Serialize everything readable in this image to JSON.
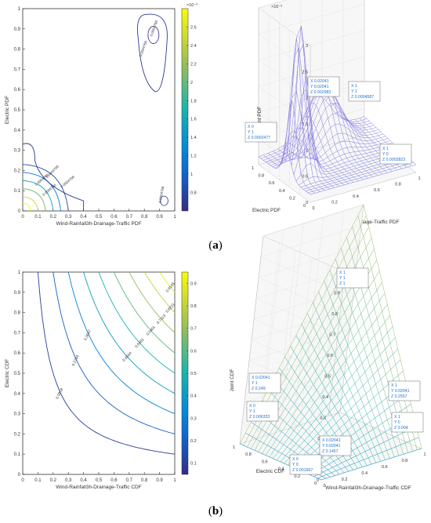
{
  "panel_labels": {
    "a": "a",
    "b": "b"
  },
  "chart_data": [
    {
      "id": "a-contour",
      "type": "contour",
      "xlabel": "Wind-Rainfall3h-Drainage-Traffic PDF",
      "ylabel": "Electric PDF",
      "xlim": [
        0,
        1
      ],
      "ylim": [
        0,
        1
      ],
      "xticks": [
        "0",
        "0.1",
        "0.2",
        "0.3",
        "0.4",
        "0.5",
        "0.6",
        "0.7",
        "0.8",
        "0.9",
        "1"
      ],
      "yticks": [
        "0",
        "0.1",
        "0.2",
        "0.3",
        "0.4",
        "0.5",
        "0.6",
        "0.7",
        "0.8",
        "0.9",
        "1"
      ],
      "contour_labels": [
        "0.0004766",
        "0.0004766",
        "0.0004766",
        "0.0004766",
        "0.0004766",
        "0.0004766",
        "0.0004766"
      ],
      "colorbar": {
        "exponent": "×10⁻³",
        "ticks": [
          "0.8",
          "1",
          "1.2",
          "1.4",
          "1.6",
          "1.8",
          "2",
          "2.2",
          "2.4",
          "2.6"
        ],
        "range": [
          0.6,
          2.8
        ]
      }
    },
    {
      "id": "a-surface",
      "type": "surface",
      "xlabel": "Wind-Rainfall3h-Drainage-Traffic PDF",
      "ylabel": "Electric PDF",
      "zlabel": "Joint PDF",
      "exponent": "×10⁻³",
      "zticks": [
        "0",
        "0.5",
        "1",
        "1.5",
        "2",
        "2.5",
        "3"
      ],
      "xticks": [
        "0",
        "0.2",
        "0.4",
        "0.6",
        "0.8",
        "1"
      ],
      "yticks": [
        "0",
        "0.2",
        "0.4",
        "0.6",
        "0.8",
        "1"
      ],
      "datatips": [
        {
          "x": "X 0.02041",
          "y": "Y 0.02041",
          "z": "Z 0.002983"
        },
        {
          "x": "X 1",
          "y": "Y 1",
          "z": "Z 0.0004587"
        },
        {
          "x": "X 0",
          "y": "Y 1",
          "z": "Z 0.0002477"
        },
        {
          "x": "X 1",
          "y": "Y 0",
          "z": "Z 0.0002823"
        }
      ]
    },
    {
      "id": "b-contour",
      "type": "contour",
      "xlabel": "Wind-Rainfall3h-Drainage-Traffic CDF",
      "ylabel": "Electric CDF",
      "xlim": [
        0,
        1
      ],
      "ylim": [
        0,
        1
      ],
      "xticks": [
        "0",
        "0.1",
        "0.2",
        "0.3",
        "0.4",
        "0.5",
        "0.6",
        "0.7",
        "0.8",
        "0.9",
        "1"
      ],
      "yticks": [
        "0",
        "0.1",
        "0.2",
        "0.3",
        "0.4",
        "0.5",
        "0.6",
        "0.7",
        "0.8",
        "0.9",
        "1"
      ],
      "levels": [
        {
          "value": 0.1,
          "label": "0.0818"
        },
        {
          "value": 0.2,
          "label": "0.2734"
        },
        {
          "value": 0.3,
          "label": "0.3647"
        },
        {
          "value": 0.4,
          "label": "0.4564"
        },
        {
          "value": 0.5,
          "label": "0.5481"
        },
        {
          "value": 0.6,
          "label": "0.6401"
        },
        {
          "value": 0.7,
          "label": "0.7313"
        },
        {
          "value": 0.8,
          "label": "0.8221"
        },
        {
          "value": 0.9,
          "label": "0.9145"
        }
      ],
      "colorbar": {
        "ticks": [
          "0.1",
          "0.2",
          "0.3",
          "0.4",
          "0.5",
          "0.6",
          "0.7",
          "0.8",
          "0.9"
        ],
        "range": [
          0.05,
          0.95
        ]
      }
    },
    {
      "id": "b-surface",
      "type": "surface",
      "xlabel": "Wind-Rainfall3h-Drainage-Traffic CDF",
      "ylabel": "Electric CDF",
      "zlabel": "Joint CDF",
      "zticks": [
        "0",
        "0.1",
        "0.2",
        "0.3",
        "0.4",
        "0.5",
        "0.6",
        "0.7",
        "0.8",
        "0.9",
        "1"
      ],
      "xticks": [
        "0",
        "0.2",
        "0.4",
        "0.6",
        "0.8",
        "1"
      ],
      "yticks": [
        "0",
        "0.2",
        "0.4",
        "0.6",
        "0.8",
        "1"
      ],
      "datatips": [
        {
          "x": "X 1",
          "y": "Y 1",
          "z": "Z 1"
        },
        {
          "x": "X 0.02041",
          "y": "Y 1",
          "z": "Z 0.249"
        },
        {
          "x": "X 0",
          "y": "Y 1",
          "z": "Z 0.006333"
        },
        {
          "x": "X 1",
          "y": "Y 0.02041",
          "z": "Z 0.2557"
        },
        {
          "x": "X 0.02041",
          "y": "Y 0.02041",
          "z": "Z 0.1457"
        },
        {
          "x": "X 1",
          "y": "Y 0",
          "z": "Z 0.004"
        },
        {
          "x": "X 0",
          "y": "Y 0",
          "z": "Z 0.001667"
        }
      ]
    }
  ]
}
